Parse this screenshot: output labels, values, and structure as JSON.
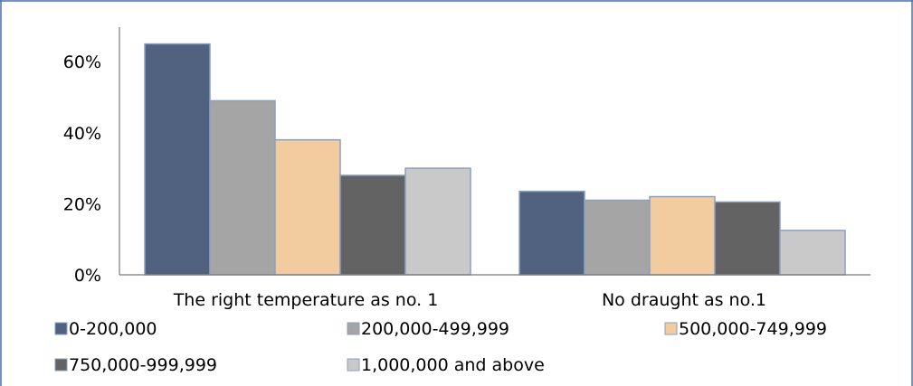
{
  "chart_data": {
    "type": "bar",
    "categories": [
      "The right temperature as no. 1",
      "No draught as no.1"
    ],
    "series": [
      {
        "name": "0-200,000",
        "values": [
          65,
          23.5
        ],
        "color": "#50627f"
      },
      {
        "name": "200,000-499,999",
        "values": [
          49,
          21
        ],
        "color": "#a5a5a5"
      },
      {
        "name": "500,000-749,999",
        "values": [
          38,
          22
        ],
        "color": "#f2cc9e"
      },
      {
        "name": "750,000-999,999",
        "values": [
          28,
          20.5
        ],
        "color": "#636363"
      },
      {
        "name": "1,000,000 and above",
        "values": [
          30,
          12.5
        ],
        "color": "#c9c9c9"
      }
    ],
    "ylim": [
      0,
      70
    ],
    "y_ticks": [
      0,
      20,
      40,
      60
    ],
    "y_tick_labels": [
      "0%",
      "20%",
      "40%",
      "60%"
    ],
    "grid": false,
    "legend_position": "bottom",
    "bar_border_color": "#8aa0c4",
    "axis_color": "#7a7a7a",
    "frame_color": "#4a6fa5"
  }
}
